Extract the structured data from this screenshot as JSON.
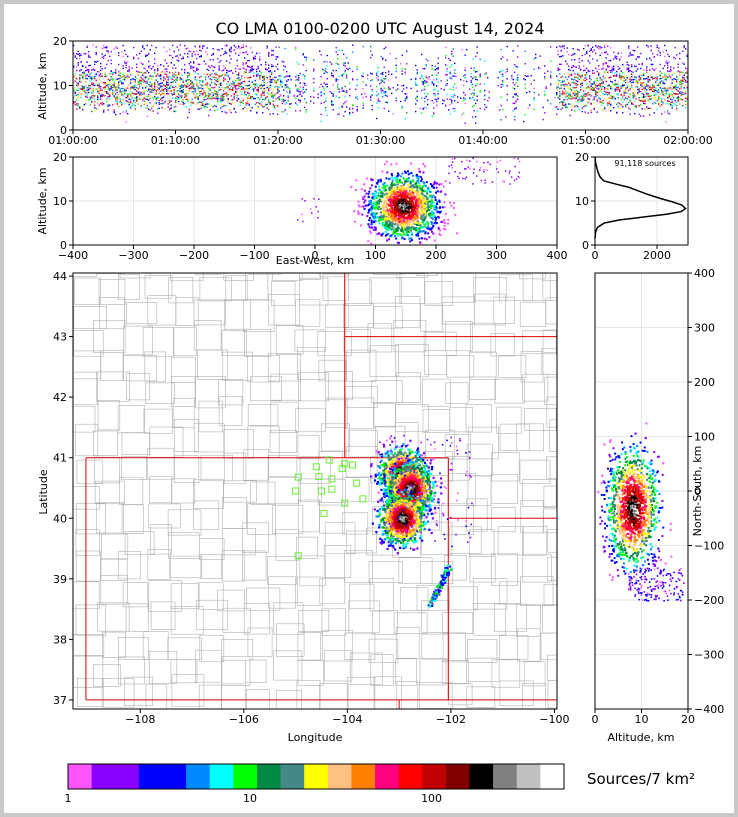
{
  "title": "CO LMA 0100-0200 UTC August 14, 2024",
  "colors": {
    "count_scale": [
      "#ff55ff",
      "#8800ff",
      "#8800ff",
      "#0000ff",
      "#0000ff",
      "#0088ff",
      "#00ffff",
      "#00ff00",
      "#008844",
      "#448888",
      "#ffff00",
      "#ffc080",
      "#ff8000",
      "#ff0080",
      "#ff0000",
      "#c00000",
      "#800000",
      "#000000",
      "#808080",
      "#c0c0c0",
      "#ffffff"
    ],
    "state_border": "#dd0000",
    "county_border": "#b0b0b0",
    "network_station": "#66ee33"
  },
  "chart_data": [
    {
      "name": "time-altitude",
      "type": "scatter",
      "ylabel": "Altitude, km",
      "x_ticks": [
        "01:00:00",
        "01:10:00",
        "01:20:00",
        "01:30:00",
        "01:40:00",
        "01:50:00",
        "02:00:00"
      ],
      "xlim": [
        "01:00:00",
        "02:00:00"
      ],
      "ylim": [
        0,
        20
      ],
      "y_ticks": [
        0,
        10,
        20
      ],
      "activity_bands": [
        [
          "01:00:00",
          "01:20:00"
        ],
        [
          "01:47:00",
          "02:00:00"
        ]
      ],
      "core_altitude_km": [
        4,
        13
      ]
    },
    {
      "name": "east-west-altitude",
      "type": "heatmap",
      "xlabel": "East-West, km",
      "ylabel": "Altitude, km",
      "xlim": [
        -400,
        400
      ],
      "ylim": [
        0,
        20
      ],
      "x_ticks": [
        -400,
        -300,
        -200,
        -100,
        0,
        100,
        200,
        300,
        400
      ],
      "y_ticks": [
        0,
        10,
        20
      ],
      "density_peak": {
        "x_km": 145,
        "altitude_km": 9
      }
    },
    {
      "name": "altitude-histogram",
      "type": "line",
      "annotation": "91,118 sources",
      "xlim": [
        0,
        3000
      ],
      "ylim": [
        0,
        20
      ],
      "x_ticks": [
        0,
        2000
      ],
      "y_ticks": [
        0,
        10,
        20
      ],
      "points": [
        [
          0,
          1.5
        ],
        [
          20,
          3
        ],
        [
          80,
          4
        ],
        [
          300,
          5
        ],
        [
          800,
          5.7
        ],
        [
          1500,
          6.3
        ],
        [
          2300,
          7
        ],
        [
          2780,
          7.6
        ],
        [
          2920,
          8.3
        ],
        [
          2800,
          9.1
        ],
        [
          2500,
          9.8
        ],
        [
          2100,
          10.6
        ],
        [
          1700,
          11.5
        ],
        [
          1400,
          12.3
        ],
        [
          1100,
          13.1
        ],
        [
          700,
          13.8
        ],
        [
          280,
          14.6
        ],
        [
          160,
          15.5
        ],
        [
          100,
          16.5
        ],
        [
          60,
          17.5
        ],
        [
          15,
          18.8
        ],
        [
          0,
          20
        ]
      ]
    },
    {
      "name": "plan-view",
      "type": "heatmap",
      "xlabel": "Longitude",
      "ylabel": "Latitude",
      "xlim": [
        -109.3,
        -99.95
      ],
      "ylim": [
        36.85,
        44.05
      ],
      "x_ticks": [
        -108,
        -106,
        -104,
        -102,
        -100
      ],
      "y_ticks": [
        37,
        38,
        39,
        40,
        41,
        42,
        43,
        44
      ],
      "stations": [
        [
          -104.35,
          40.96
        ],
        [
          -104.6,
          40.85
        ],
        [
          -104.05,
          40.9
        ],
        [
          -103.9,
          40.88
        ],
        [
          -104.1,
          40.82
        ],
        [
          -104.95,
          40.68
        ],
        [
          -104.55,
          40.69
        ],
        [
          -104.3,
          40.65
        ],
        [
          -103.82,
          40.58
        ],
        [
          -104.5,
          40.45
        ],
        [
          -104.3,
          40.48
        ],
        [
          -105.0,
          40.45
        ],
        [
          -103.7,
          40.32
        ],
        [
          -104.05,
          40.25
        ],
        [
          -104.45,
          40.08
        ],
        [
          -104.95,
          39.38
        ]
      ],
      "density_cores": [
        [
          -102.95,
          40.75
        ],
        [
          -102.8,
          40.5
        ],
        [
          -102.95,
          40.0
        ]
      ]
    },
    {
      "name": "north-south-altitude",
      "type": "heatmap",
      "xlabel": "Altitude, km",
      "ylabel": "North-South, km",
      "xlim": [
        0,
        20
      ],
      "ylim": [
        -400,
        400
      ],
      "x_ticks": [
        0,
        10,
        20
      ],
      "y_ticks": [
        -400,
        -300,
        -200,
        -100,
        0,
        100,
        200,
        300,
        400
      ],
      "density_peak": {
        "altitude_km": 8,
        "y_km": -55
      }
    },
    {
      "name": "colorbar",
      "type": "heatmap",
      "label": "Sources/7 km²",
      "tick_labels": [
        "1",
        "10",
        "100"
      ]
    }
  ]
}
